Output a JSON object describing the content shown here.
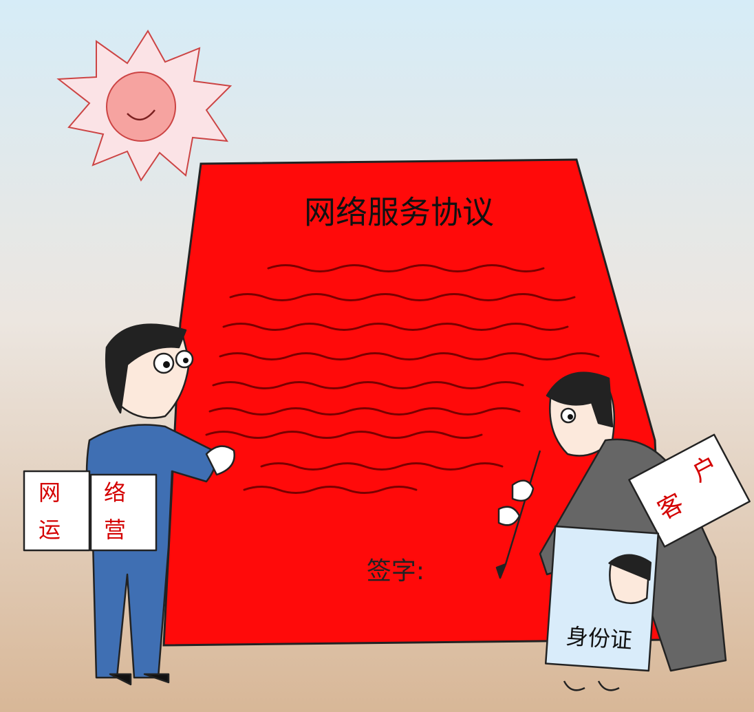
{
  "document": {
    "title": "网络服务协议",
    "signature_label": "签字:"
  },
  "operator_sign": {
    "characters": [
      "网",
      "络",
      "运",
      "营"
    ]
  },
  "customer_sign": {
    "characters": [
      "客",
      "户"
    ]
  },
  "id_card": {
    "label": "身份证"
  }
}
